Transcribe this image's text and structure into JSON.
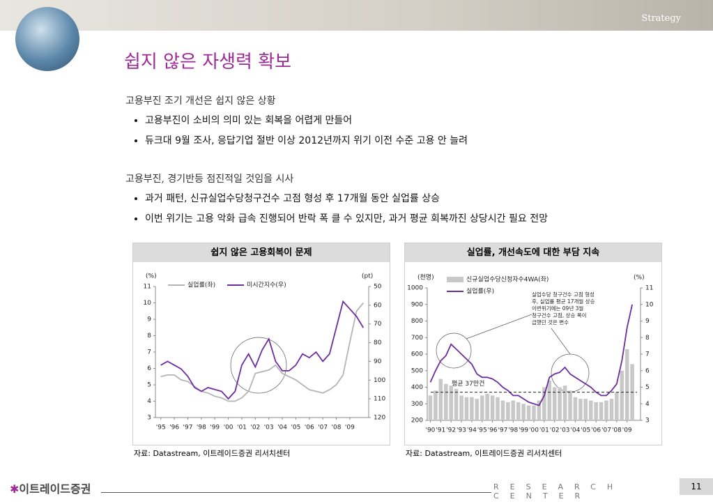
{
  "header": {
    "section": "Strategy",
    "title": "쉽지 않은 자생력 확보"
  },
  "sections": [
    {
      "heading": "고용부진 조기 개선은 쉽지 않은 상황",
      "bullets": [
        "고용부진이 소비의 의미 있는 회복을 어렵게 만들어",
        "듀크대 9월 조사, 응답기업 절반 이상 2012년까지 위기 이전 수준 고용 안 늘려"
      ]
    },
    {
      "heading": "고용부진, 경기반등 점진적일 것임을 시사",
      "bullets": [
        "과거 패턴, 신규실업수당청구건수 고점 형성 후 17개월 동안 실업률 상승",
        "이번 위기는 고용 악화 급속 진행되어 반락 폭 클 수 있지만, 과거 평균 회복까진 상당시간 필요 전망"
      ]
    }
  ],
  "chart_data": [
    {
      "type": "line",
      "title": "쉽지 않은 고용회복이 문제",
      "source": "자료: Datastream, 이트레이드증권 리서치센터",
      "ylabel": "(%)",
      "y2label": "(pt)",
      "x": [
        1995,
        1995.5,
        1996,
        1996.5,
        1997,
        1997.5,
        1998,
        1998.5,
        1999,
        1999.5,
        2000,
        2000.5,
        2001,
        2001.5,
        2002,
        2002.5,
        2003,
        2003.5,
        2004,
        2004.5,
        2005,
        2005.5,
        2006,
        2006.5,
        2007,
        2007.5,
        2008,
        2008.5,
        2009,
        2009.5,
        2010
      ],
      "xlim": [
        1994.6,
        2010.4
      ],
      "xticks": [
        {
          "value": 1995,
          "label": "'95"
        },
        {
          "value": 1996,
          "label": "'96"
        },
        {
          "value": 1997,
          "label": "'97"
        },
        {
          "value": 1998,
          "label": "'98"
        },
        {
          "value": 1999,
          "label": "'99"
        },
        {
          "value": 2000,
          "label": "'00"
        },
        {
          "value": 2001,
          "label": "'01"
        },
        {
          "value": 2002,
          "label": "'02"
        },
        {
          "value": 2003,
          "label": "'03"
        },
        {
          "value": 2004,
          "label": "'04"
        },
        {
          "value": 2005,
          "label": "'05"
        },
        {
          "value": 2006,
          "label": "'06"
        },
        {
          "value": 2007,
          "label": "'07"
        },
        {
          "value": 2008,
          "label": "'08"
        },
        {
          "value": 2009,
          "label": "'09"
        }
      ],
      "ylim": [
        3,
        11
      ],
      "yticks": [
        3,
        4,
        5,
        6,
        7,
        8,
        9,
        10,
        11
      ],
      "y2lim": [
        120,
        50
      ],
      "y2ticks": [
        120,
        110,
        100,
        90,
        80,
        70,
        60,
        50
      ],
      "series": [
        {
          "name": "실업률(좌)",
          "color": "#b4b4b4",
          "values": [
            5.5,
            5.6,
            5.6,
            5.3,
            5.2,
            4.9,
            4.6,
            4.5,
            4.3,
            4.2,
            4.0,
            4.0,
            4.2,
            4.6,
            5.7,
            5.8,
            5.9,
            6.2,
            5.7,
            5.5,
            5.3,
            5.0,
            4.7,
            4.6,
            4.5,
            4.7,
            5.0,
            5.6,
            7.6,
            9.5,
            10.0
          ]
        },
        {
          "name": "미시간지수(우)",
          "color": "#6b2c9e",
          "axis": "y2",
          "values": [
            92,
            90,
            92,
            94,
            98,
            104,
            106,
            104,
            105,
            106,
            110,
            106,
            92,
            86,
            93,
            84,
            78,
            90,
            95,
            95,
            92,
            86,
            88,
            85,
            90,
            86,
            72,
            58,
            62,
            66,
            72
          ]
        }
      ]
    },
    {
      "type": "bar",
      "title": "실업률, 개선속도에 대한 부담 지속",
      "source": "자료: Datastream, 이트레이드증권 리서치센터",
      "ylabel": "(천명)",
      "y2label": "(%)",
      "x": [
        1990,
        1990.5,
        1991,
        1991.5,
        1992,
        1992.5,
        1993,
        1993.5,
        1994,
        1994.5,
        1995,
        1995.5,
        1996,
        1996.5,
        1997,
        1997.5,
        1998,
        1998.5,
        1999,
        1999.5,
        2000,
        2000.5,
        2001,
        2001.5,
        2002,
        2002.5,
        2003,
        2003.5,
        2004,
        2004.5,
        2005,
        2005.5,
        2006,
        2006.5,
        2007,
        2007.5,
        2008,
        2008.5,
        2009,
        2009.5
      ],
      "xlim": [
        1989.7,
        2010.3
      ],
      "xticks": [
        {
          "value": 1990,
          "label": "'90"
        },
        {
          "value": 1991,
          "label": "'91"
        },
        {
          "value": 1992,
          "label": "'92"
        },
        {
          "value": 1993,
          "label": "'93"
        },
        {
          "value": 1994,
          "label": "'94"
        },
        {
          "value": 1995,
          "label": "'95"
        },
        {
          "value": 1996,
          "label": "'96"
        },
        {
          "value": 1997,
          "label": "'97"
        },
        {
          "value": 1998,
          "label": "'98"
        },
        {
          "value": 1999,
          "label": "'99"
        },
        {
          "value": 2000,
          "label": "'00"
        },
        {
          "value": 2001,
          "label": "'01"
        },
        {
          "value": 2002,
          "label": "'02"
        },
        {
          "value": 2003,
          "label": "'03"
        },
        {
          "value": 2004,
          "label": "'04"
        },
        {
          "value": 2005,
          "label": "'05"
        },
        {
          "value": 2006,
          "label": "'06"
        },
        {
          "value": 2007,
          "label": "'07"
        },
        {
          "value": 2008,
          "label": "'08"
        },
        {
          "value": 2009,
          "label": "'09"
        }
      ],
      "ylim": [
        200,
        1000
      ],
      "yticks": [
        200,
        300,
        400,
        500,
        600,
        700,
        800,
        900,
        1000
      ],
      "y2lim": [
        3,
        11
      ],
      "y2ticks": [
        3,
        4,
        5,
        6,
        7,
        8,
        9,
        10,
        11
      ],
      "reference_line": {
        "value": 370,
        "label": "평균 37만건"
      },
      "annotation": [
        "실업수당 청구건수 고점 형성",
        "후, 실업률 평균 17개월  상승",
        "이번위기에는  09년 3월",
        "청구건수 고점, 상승 폭이",
        "급했던 것은 변수"
      ],
      "series": [
        {
          "name": "신규실업수당신청자수4WA(좌)",
          "color": "#c8c8c8",
          "type": "bar",
          "values": [
            350,
            380,
            450,
            420,
            410,
            390,
            350,
            340,
            340,
            330,
            350,
            360,
            350,
            340,
            320,
            310,
            320,
            310,
            300,
            290,
            290,
            320,
            400,
            440,
            400,
            400,
            410,
            380,
            340,
            330,
            330,
            320,
            310,
            310,
            320,
            330,
            370,
            500,
            630,
            540
          ]
        },
        {
          "name": "실업률(우)",
          "color": "#6b2c9e",
          "type": "line",
          "axis": "y2",
          "values": [
            5.3,
            6.0,
            6.6,
            6.9,
            7.6,
            7.3,
            7.0,
            6.7,
            6.4,
            5.8,
            5.6,
            5.6,
            5.5,
            5.3,
            5.0,
            4.8,
            4.5,
            4.5,
            4.3,
            4.1,
            4.0,
            3.9,
            4.5,
            5.6,
            5.8,
            5.9,
            6.2,
            5.8,
            5.6,
            5.4,
            5.2,
            5.0,
            4.7,
            4.5,
            4.5,
            4.8,
            5.2,
            6.6,
            8.6,
            10.0
          ]
        }
      ]
    }
  ],
  "footer": {
    "brand": "이트레이드증권",
    "center": "RESEARCH CENTER",
    "page": "11"
  }
}
